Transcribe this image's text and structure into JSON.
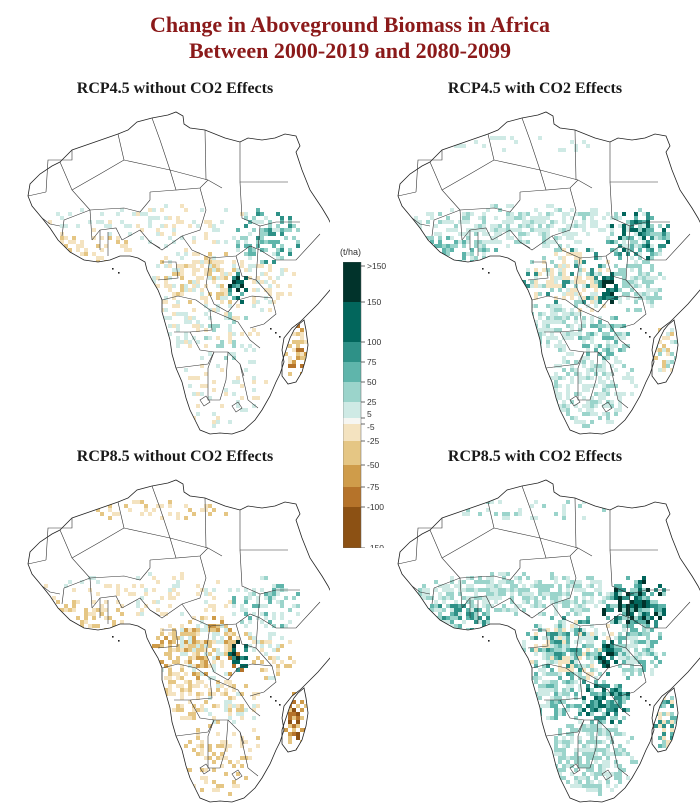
{
  "title": {
    "line1": "Change in Aboveground Biomass in Africa",
    "line2": "Between 2000-2019 and 2080-2099"
  },
  "panels": [
    {
      "id": "rcp45-no-co2",
      "title": "RCP4.5 without CO2 Effects",
      "scenario": "RCP4.5",
      "co2_effects": false
    },
    {
      "id": "rcp45-co2",
      "title": "RCP4.5 with CO2 Effects",
      "scenario": "RCP4.5",
      "co2_effects": true
    },
    {
      "id": "rcp85-no-co2",
      "title": "RCP8.5 without CO2 Effects",
      "scenario": "RCP8.5",
      "co2_effects": false
    },
    {
      "id": "rcp85-co2",
      "title": "RCP8.5 with CO2 Effects",
      "scenario": "RCP8.5",
      "co2_effects": true
    }
  ],
  "legend": {
    "unit": "(t/ha)",
    "classes": [
      {
        "range": ">150",
        "color": "#01332b"
      },
      {
        "range": "100 to 150",
        "color": "#02665c"
      },
      {
        "range": "75 to 100",
        "color": "#2e9187"
      },
      {
        "range": "50 to 75",
        "color": "#5fb5ab"
      },
      {
        "range": "25 to 50",
        "color": "#9bd4cb"
      },
      {
        "range": "5 to 25",
        "color": "#cfeae5"
      },
      {
        "range": "-5 to 5",
        "color": "#f6f6f2"
      },
      {
        "range": "-25 to -5",
        "color": "#f4e3c0"
      },
      {
        "range": "-50 to -25",
        "color": "#e5c684"
      },
      {
        "range": "-75 to -50",
        "color": "#cf9c4a"
      },
      {
        "range": "-100 to -75",
        "color": "#b5732a"
      },
      {
        "range": "-150 to -100",
        "color": "#8c5114"
      }
    ],
    "tick_labels": [
      ">150",
      "150",
      "100",
      "75",
      "50",
      "25",
      "5",
      "-5",
      "-25",
      "-50",
      "-75",
      "-100",
      "-150"
    ],
    "tick_values": [
      200,
      150,
      100,
      75,
      50,
      25,
      5,
      -5,
      -25,
      -50,
      -75,
      -100,
      -150
    ]
  },
  "chart_data": {
    "type": "heatmap",
    "title": "Change in Aboveground Biomass in Africa Between 2000-2019 and 2080-2099",
    "colorbar_label": "(t/ha)",
    "colorbar_ticks": [
      ">150",
      "150",
      "100",
      "75",
      "50",
      "25",
      "5",
      "-5",
      "-25",
      "-50",
      "-75",
      "-100",
      "-150"
    ],
    "maps": [
      {
        "title": "RCP4.5 without CO2 Effects",
        "regional_change_classes": {
          "sahara": "-5 to 5",
          "west_africa_coast": "-25 to -5",
          "ethiopian_highlands": "25 to 100",
          "congo_basin": "-25 to -5",
          "great_lakes": "100 to >150",
          "southern_africa": "-5 to 25",
          "madagascar_east": "-50 to -25"
        }
      },
      {
        "title": "RCP4.5 with CO2 Effects",
        "regional_change_classes": {
          "sahara": "-5 to 5",
          "sahel": "5 to 25",
          "ethiopian_highlands": "50 to >150",
          "congo_basin": "-25 to 25",
          "great_lakes": "100 to >150",
          "southern_africa": "5 to 50",
          "madagascar_east": "-25 to 5"
        }
      },
      {
        "title": "RCP8.5 without CO2 Effects",
        "regional_change_classes": {
          "sahara": "-5 to 5",
          "north_africa_coast": "-25 to -5",
          "west_africa_coast": "-50 to -5",
          "ethiopian_highlands": "5 to 75",
          "congo_basin": "-50 to -5",
          "great_lakes": "100 to >150",
          "southern_africa": "-25 to -5",
          "madagascar_east": "-150 to -50"
        }
      },
      {
        "title": "RCP8.5 with CO2 Effects",
        "regional_change_classes": {
          "sahara": "-5 to 5",
          "sahel": "5 to 25",
          "ethiopian_highlands": "50 to >150",
          "congo_basin": "-25 to 50",
          "great_lakes": "100 to >150",
          "east_africa": "25 to 100",
          "southern_africa": "5 to 50",
          "madagascar_east": "-25 to 50"
        }
      }
    ]
  }
}
